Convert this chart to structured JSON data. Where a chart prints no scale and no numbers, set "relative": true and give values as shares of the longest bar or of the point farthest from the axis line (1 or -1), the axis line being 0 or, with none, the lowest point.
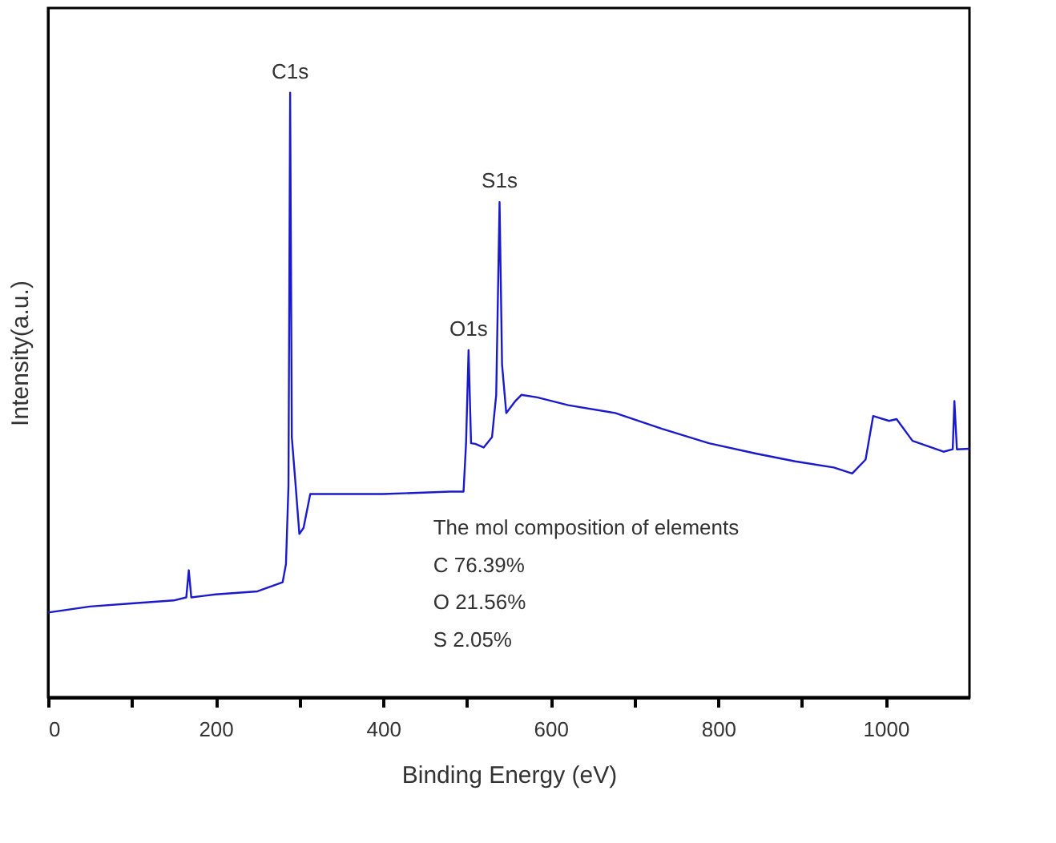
{
  "chart_data": {
    "type": "line",
    "relative": true,
    "xlabel": "Binding Energy (eV)",
    "ylabel": "Intensity(a.u.)",
    "xlim": [
      0,
      1100
    ],
    "xticks": [
      0,
      {
        "value": 100,
        "label": null
      },
      200,
      {
        "value": 300,
        "label": null
      },
      400,
      {
        "value": 500,
        "label": null
      },
      600,
      {
        "value": 700,
        "label": null
      },
      800,
      {
        "value": 900,
        "label": null
      },
      1000
    ],
    "x": [
      0,
      50,
      100,
      150,
      165,
      168,
      171,
      200,
      250,
      280,
      284,
      287,
      289,
      291,
      295,
      300,
      305,
      313,
      400,
      480,
      496,
      499,
      502,
      505,
      510,
      520,
      530,
      535,
      539,
      542,
      547,
      558,
      565,
      584,
      621,
      677,
      733,
      789,
      845,
      892,
      938,
      960,
      976,
      985,
      1004,
      1013,
      1032,
      1069,
      1080,
      1082,
      1085,
      1100
    ],
    "series": [
      {
        "color": "#1a1acc",
        "values": [
          0.14,
          0.15,
          0.155,
          0.16,
          0.165,
          0.21,
          0.165,
          0.17,
          0.175,
          0.19,
          0.22,
          0.35,
          1.0,
          0.43,
          0.36,
          0.27,
          0.28,
          0.336,
          0.336,
          0.34,
          0.34,
          0.42,
          0.574,
          0.42,
          0.419,
          0.413,
          0.43,
          0.5,
          0.819,
          0.55,
          0.47,
          0.49,
          0.5,
          0.496,
          0.483,
          0.47,
          0.444,
          0.42,
          0.403,
          0.39,
          0.38,
          0.37,
          0.393,
          0.465,
          0.457,
          0.46,
          0.424,
          0.406,
          0.41,
          0.49,
          0.41,
          0.411
        ]
      }
    ],
    "annotations": [
      {
        "text": "C1s",
        "x": 289,
        "y": 1.0
      },
      {
        "text": "O1s",
        "x": 502,
        "y": 0.574
      },
      {
        "text": "S1s",
        "x": 539,
        "y": 0.819
      },
      "The mol composition of elements",
      "C 76.39%",
      "O 21.56%",
      "S 2.05%"
    ],
    "grid": false
  }
}
